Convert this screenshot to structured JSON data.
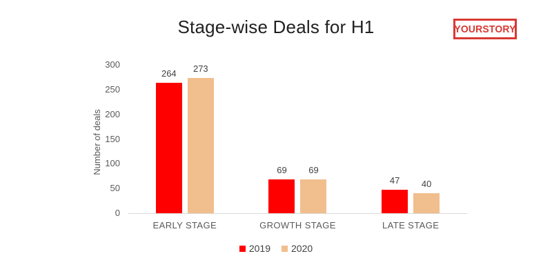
{
  "header": {
    "title": "Stage-wise Deals for H1",
    "logo": {
      "text": "YOURSTORY",
      "color": "#D93832"
    }
  },
  "chart_data": {
    "type": "bar",
    "title": "Stage-wise Deals for H1",
    "categories": [
      "EARLY STAGE",
      "GROWTH STAGE",
      "LATE STAGE"
    ],
    "series": [
      {
        "name": "2019",
        "color": "#FE0000",
        "values": [
          264,
          69,
          47
        ]
      },
      {
        "name": "2020",
        "color": "#F1BE8D",
        "values": [
          273,
          69,
          40
        ]
      }
    ],
    "xlabel": "",
    "ylabel": "Number of deals",
    "ylim": [
      0,
      300
    ],
    "yticks": [
      0,
      50,
      100,
      150,
      200,
      250,
      300
    ],
    "grid": false,
    "value_labels": true,
    "legend_position": "bottom",
    "axis_text_color": "#595959",
    "axis_line_color": "#D9D9D9"
  }
}
